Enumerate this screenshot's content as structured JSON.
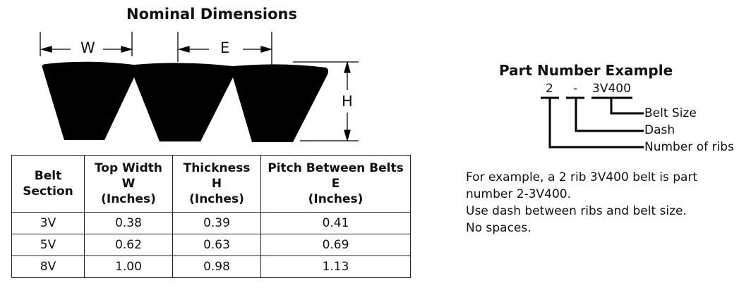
{
  "diagram": {
    "title": "Nominal Dimensions",
    "labels": {
      "w": "W",
      "e": "E",
      "h": "H"
    }
  },
  "table": {
    "headers": [
      [
        "Belt",
        "Section"
      ],
      [
        "Top Width",
        "W",
        "(Inches)"
      ],
      [
        "Thickness",
        "H",
        "(Inches)"
      ],
      [
        "Pitch Between Belts",
        "E",
        "(Inches)"
      ]
    ],
    "rows": [
      [
        "3V",
        "0.38",
        "0.39",
        "0.41"
      ],
      [
        "5V",
        "0.62",
        "0.63",
        "0.69"
      ],
      [
        "8V",
        "1.00",
        "0.98",
        "1.13"
      ]
    ]
  },
  "part_number": {
    "title": "Part Number Example",
    "parts": [
      "2",
      "-",
      "3V400"
    ],
    "callouts": [
      "Belt Size",
      "Dash",
      "Number of ribs"
    ],
    "example_lines": [
      "For example, a 2 rib 3V400 belt is part",
      "number 2-3V400.",
      "Use dash between ribs and belt size.",
      "No spaces."
    ]
  }
}
